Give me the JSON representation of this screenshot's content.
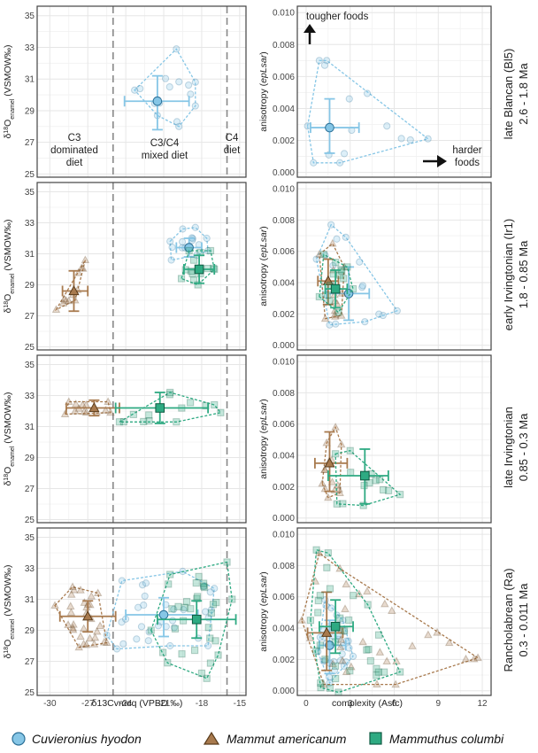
{
  "colors": {
    "cuvieronius": "#86c6e6",
    "mammut": "#a87a4e",
    "mammuthus": "#2eaa82",
    "grid": "#e6e6e6",
    "border": "#444444",
    "divider": "#888888"
  },
  "labels": {
    "y_left": "δ18Oenamel (VSMOW‰)",
    "y_right": "anisotropy (epLsar)",
    "x_left": "δ13Cvmeq (VPBD ‰)",
    "x_right": "complexity (Asfc)",
    "diet_c3_1": "C3",
    "diet_c3_2": "dominated",
    "diet_c3_3": "diet",
    "diet_mixed_1": "C3/C4",
    "diet_mixed_2": "mixed diet",
    "diet_c4_1": "C4",
    "diet_c4_2": "diet",
    "tougher": "tougher foods",
    "harder_1": "harder",
    "harder_2": "foods"
  },
  "rows": [
    {
      "name": "late Blancan (Bl5)",
      "range": "2.6 - 1.8 Ma"
    },
    {
      "name": "early Irvingtonian  (Ir1)",
      "range": "1.8 - 0.85 Ma"
    },
    {
      "name": "late Irvingtonian",
      "range": "0.85 - 0.3 Ma"
    },
    {
      "name": "Rancholabrean (Ra)",
      "range": "0.3 - 0.011 Ma"
    }
  ],
  "legend": [
    {
      "taxon": "Cuvieronius hyodon",
      "shape": "circle",
      "color": "#86c6e6"
    },
    {
      "taxon": "Mammut americanum",
      "shape": "triangle",
      "color": "#a87a4e"
    },
    {
      "taxon": "Mammuthus columbi",
      "shape": "square",
      "color": "#2eaa82"
    }
  ],
  "chart_data": [
    {
      "type": "scatter",
      "panel": "isotope",
      "x_ticks": [
        -30,
        -27,
        -24,
        -21,
        -18,
        -15
      ],
      "y_ticks": [
        25,
        27,
        29,
        31,
        33,
        35
      ],
      "xlim": [
        -31,
        -14.5
      ],
      "ylim": [
        24.8,
        35.6
      ],
      "diet_boundaries": [
        -25,
        -16
      ],
      "rows": [
        {
          "series": [
            {
              "name": "Cuvieronius hyodon",
              "mean": [
                -21.5,
                29.6
              ],
              "err_x": [
                -24.1,
                -19.0
              ],
              "err_y": [
                27.8,
                31.2
              ],
              "hull": [
                [
                  -23.3,
                  30.3
                ],
                [
                  -20,
                  32.9
                ],
                [
                  -18.5,
                  30.8
                ],
                [
                  -18.5,
                  29.3
                ],
                [
                  -19.8,
                  28.0
                ],
                [
                  -21.5,
                  28.7
                ]
              ]
            }
          ]
        },
        {
          "series": [
            {
              "name": "Cuvieronius hyodon",
              "mean": [
                -19.0,
                31.4
              ],
              "err_x": [
                -20.0,
                -18.0
              ],
              "err_y": [
                30.8,
                32.0
              ],
              "hull": [
                [
                  -20.5,
                  31.8
                ],
                [
                  -19.5,
                  32.6
                ],
                [
                  -18.5,
                  32.7
                ],
                [
                  -17.6,
                  32.0
                ],
                [
                  -17.5,
                  31.2
                ],
                [
                  -18.4,
                  30.9
                ],
                [
                  -20.4,
                  30.6
                ]
              ]
            },
            {
              "name": "Mammut americanum",
              "mean": [
                -28.1,
                28.6
              ],
              "err_x": [
                -29.0,
                -27.0
              ],
              "err_y": [
                27.3,
                29.9
              ],
              "hull": [
                [
                  -29.5,
                  27.4
                ],
                [
                  -27.2,
                  30.6
                ],
                [
                  -28.0,
                  28.0
                ]
              ]
            },
            {
              "name": "Mammuthus columbi",
              "mean": [
                -18.2,
                30.0
              ],
              "err_x": [
                -19.4,
                -17.0
              ],
              "err_y": [
                29.1,
                30.9
              ],
              "hull": [
                [
                  -19.6,
                  29.4
                ],
                [
                  -19.0,
                  31.2
                ],
                [
                  -17.3,
                  31.2
                ],
                [
                  -17.0,
                  30.0
                ],
                [
                  -18.3,
                  29.0
                ]
              ]
            }
          ]
        },
        {
          "series": [
            {
              "name": "Mammut americanum",
              "mean": [
                -26.5,
                32.2
              ],
              "err_x": [
                -28.7,
                -24.5
              ],
              "err_y": [
                31.7,
                32.7
              ],
              "hull": [
                [
                  -28.8,
                  31.8
                ],
                [
                  -28.5,
                  32.6
                ],
                [
                  -25.4,
                  32.6
                ],
                [
                  -25.2,
                  31.9
                ]
              ]
            },
            {
              "name": "Mammuthus columbi",
              "mean": [
                -21.3,
                32.2
              ],
              "err_x": [
                -24.8,
                -17.5
              ],
              "err_y": [
                31.2,
                33.2
              ],
              "hull": [
                [
                  -24.5,
                  31.3
                ],
                [
                  -20.5,
                  33.2
                ],
                [
                  -17.0,
                  32.4
                ],
                [
                  -16.5,
                  31.9
                ],
                [
                  -20.0,
                  31.3
                ]
              ]
            }
          ]
        },
        {
          "series": [
            {
              "name": "Cuvieronius hyodon",
              "mean": [
                -21.0,
                30.0
              ],
              "err_x": [
                -24.0,
                -18.3
              ],
              "err_y": [
                28.6,
                31.1
              ],
              "hull": [
                [
                  -25.5,
                  28.7
                ],
                [
                  -24.3,
                  32.2
                ],
                [
                  -19.5,
                  32.8
                ],
                [
                  -17.0,
                  31.7
                ],
                [
                  -17.5,
                  28.0
                ],
                [
                  -20.5,
                  28.0
                ],
                [
                  -24.7,
                  27.8
                ]
              ]
            },
            {
              "name": "Mammut americanum",
              "mean": [
                -27.0,
                29.9
              ],
              "err_x": [
                -29.2,
                -24.8
              ],
              "err_y": [
                28.9,
                30.9
              ],
              "hull": [
                [
                  -29.6,
                  30.6
                ],
                [
                  -28.2,
                  31.8
                ],
                [
                  -26.2,
                  31.4
                ],
                [
                  -25.5,
                  28.2
                ],
                [
                  -27.7,
                  27.9
                ]
              ]
            },
            {
              "name": "Mammuthus columbi",
              "mean": [
                -18.4,
                29.7
              ],
              "err_x": [
                -21.5,
                -15.3
              ],
              "err_y": [
                28.5,
                30.9
              ],
              "hull": [
                [
                  -22.0,
                  29.0
                ],
                [
                  -20.5,
                  32.6
                ],
                [
                  -16.0,
                  33.4
                ],
                [
                  -15.6,
                  31.0
                ],
                [
                  -16.7,
                  27.4
                ],
                [
                  -17.6,
                  25.9
                ],
                [
                  -20.7,
                  26.9
                ]
              ]
            }
          ]
        }
      ]
    },
    {
      "type": "scatter",
      "panel": "microwear",
      "x_ticks": [
        0,
        3,
        6,
        9,
        12
      ],
      "y_ticks": [
        0,
        0.002,
        0.004,
        0.006,
        0.008,
        0.01
      ],
      "xlim": [
        -0.6,
        12.6
      ],
      "ylim": [
        -0.0003,
        0.0104
      ],
      "rows": [
        {
          "series": [
            {
              "name": "Cuvieronius hyodon",
              "mean": [
                1.6,
                0.0028
              ],
              "err_x": [
                0.3,
                3.6
              ],
              "err_y": [
                0.0012,
                0.0046
              ],
              "hull": [
                [
                  0.1,
                  0.0029
                ],
                [
                  0.9,
                  0.007
                ],
                [
                  1.4,
                  0.007
                ],
                [
                  8.3,
                  0.0021
                ],
                [
                  2.3,
                  0.0006
                ],
                [
                  0.5,
                  0.0006
                ]
              ]
            }
          ]
        },
        {
          "series": [
            {
              "name": "Cuvieronius hyodon",
              "mean": [
                2.9,
                0.0033
              ],
              "err_x": [
                1.4,
                4.3
              ],
              "err_y": [
                0.0016,
                0.005
              ],
              "hull": [
                [
                  0.7,
                  0.0055
                ],
                [
                  1.7,
                  0.0077
                ],
                [
                  2.7,
                  0.0069
                ],
                [
                  6.2,
                  0.0022
                ],
                [
                  4.0,
                  0.0015
                ],
                [
                  1.6,
                  0.0013
                ]
              ]
            },
            {
              "name": "Mammut americanum",
              "mean": [
                1.5,
                0.0041
              ],
              "err_x": [
                0.8,
                2.2
              ],
              "err_y": [
                0.0026,
                0.0055
              ],
              "hull": [
                [
                  0.9,
                  0.0058
                ],
                [
                  1.8,
                  0.0065
                ],
                [
                  2.6,
                  0.005
                ],
                [
                  2.4,
                  0.0019
                ],
                [
                  1.3,
                  0.0017
                ]
              ]
            },
            {
              "name": "Mammuthus columbi",
              "mean": [
                2.0,
                0.0036
              ],
              "err_x": [
                1.3,
                2.8
              ],
              "err_y": [
                0.0024,
                0.0048
              ],
              "hull": [
                [
                  0.9,
                  0.0031
                ],
                [
                  1.2,
                  0.0058
                ],
                [
                  2.8,
                  0.005
                ],
                [
                  3.2,
                  0.0036
                ],
                [
                  2.2,
                  0.0021
                ]
              ]
            }
          ]
        },
        {
          "series": [
            {
              "name": "Mammut americanum",
              "mean": [
                1.6,
                0.0035
              ],
              "err_x": [
                0.6,
                2.8
              ],
              "err_y": [
                0.0017,
                0.0055
              ],
              "hull": [
                [
                  1.1,
                  0.0022
                ],
                [
                  1.4,
                  0.0048
                ],
                [
                  2.0,
                  0.0058
                ],
                [
                  2.4,
                  0.0047
                ],
                [
                  2.3,
                  0.0016
                ],
                [
                  1.5,
                  0.0013
                ]
              ]
            },
            {
              "name": "Mammuthus columbi",
              "mean": [
                4.0,
                0.0027
              ],
              "err_x": [
                1.5,
                5.6
              ],
              "err_y": [
                0.0009,
                0.0044
              ],
              "hull": [
                [
                  2.0,
                  0.0041
                ],
                [
                  3.0,
                  0.0043
                ],
                [
                  6.4,
                  0.0015
                ],
                [
                  3.9,
                  0.0008
                ],
                [
                  2.1,
                  0.0009
                ]
              ]
            }
          ]
        },
        {
          "series": [
            {
              "name": "Cuvieronius hyodon",
              "mean": [
                1.6,
                0.0029
              ],
              "err_x": [
                0.9,
                2.7
              ],
              "err_y": [
                0.0011,
                0.0045
              ],
              "hull": [
                [
                  0.8,
                  0.0025
                ],
                [
                  1.3,
                  0.0058
                ],
                [
                  2.5,
                  0.0045
                ],
                [
                  3.2,
                  0.0022
                ],
                [
                  1.6,
                  0.0005
                ]
              ]
            },
            {
              "name": "Mammut americanum",
              "mean": [
                1.4,
                0.0037
              ],
              "err_x": [
                0.1,
                2.5
              ],
              "err_y": [
                0.0013,
                0.0063
              ],
              "hull": [
                [
                  -0.3,
                  0.0045
                ],
                [
                  0.9,
                  0.0088
                ],
                [
                  2.3,
                  0.0078
                ],
                [
                  11.7,
                  0.0021
                ],
                [
                  6.1,
                  0.0004
                ],
                [
                  1.2,
                  0.0004
                ]
              ]
            },
            {
              "name": "Mammuthus columbi",
              "mean": [
                2.0,
                0.0041
              ],
              "err_x": [
                0.9,
                3.2
              ],
              "err_y": [
                0.0024,
                0.0058
              ],
              "hull": [
                [
                  0.3,
                  0.0045
                ],
                [
                  0.7,
                  0.009
                ],
                [
                  1.5,
                  0.0088
                ],
                [
                  4.2,
                  0.0055
                ],
                [
                  6.4,
                  0.0012
                ],
                [
                  2.2,
                  -0.0001
                ],
                [
                  1.0,
                  0.0002
                ]
              ]
            }
          ]
        }
      ]
    }
  ]
}
